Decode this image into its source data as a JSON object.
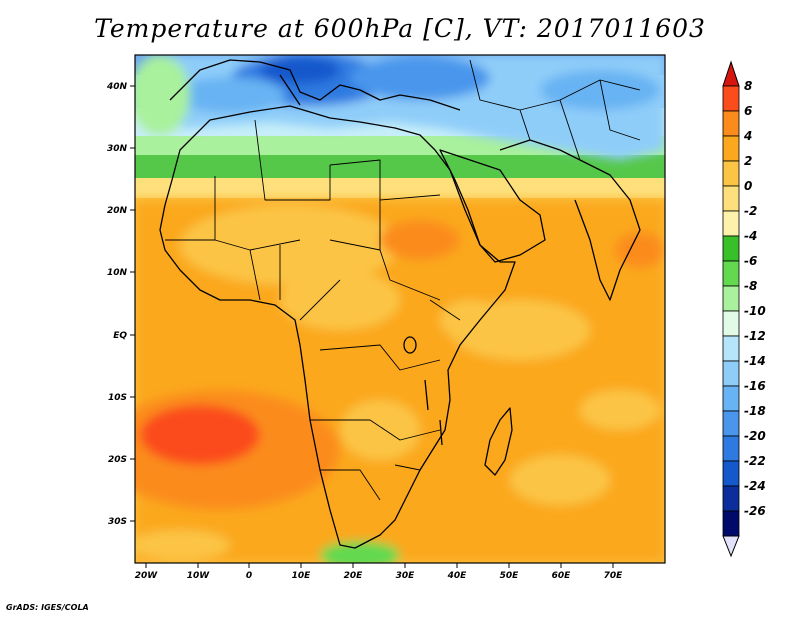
{
  "title": "Temperature at 600hPa [C], VT: 2017011603",
  "credit": "GrADS: IGES/COLA",
  "x_ticks": [
    "20W",
    "10W",
    "0",
    "10E",
    "20E",
    "30E",
    "40E",
    "50E",
    "60E",
    "70E"
  ],
  "y_ticks": [
    "40N",
    "30N",
    "20N",
    "10N",
    "EQ",
    "10S",
    "20S",
    "30S"
  ],
  "colorbar": {
    "labels": [
      "8",
      "6",
      "4",
      "2",
      "0",
      "-2",
      "-4",
      "-6",
      "-8",
      "-10",
      "-12",
      "-14",
      "-16",
      "-18",
      "-20",
      "-22",
      "-24",
      "-26"
    ],
    "colors": [
      "#fb4c1c",
      "#fb8c1c",
      "#fba81f",
      "#fcc444",
      "#fde07c",
      "#fdf2ac",
      "#37c02a",
      "#62d94f",
      "#a9f19c",
      "#e1fbe6",
      "#b4e5fa",
      "#8fcdf9",
      "#67b3f3",
      "#4996ec",
      "#2f7ae1",
      "#1558cc",
      "#0b2e9c",
      "#000a6a"
    ],
    "end_colors": {
      "top": "#d6150e",
      "bottom": "#e2e2fb"
    }
  },
  "map": {
    "region": "Africa and surroundings",
    "projection": "lat-lon",
    "lon_range": [
      -22,
      80
    ],
    "lat_range": [
      -36,
      46
    ]
  }
}
